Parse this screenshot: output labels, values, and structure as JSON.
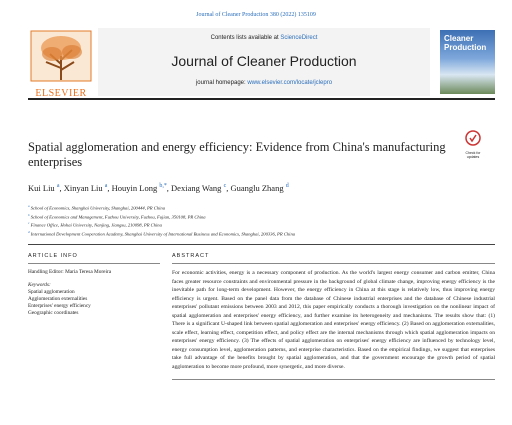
{
  "header": {
    "citation": "Journal of Cleaner Production 380 (2022) 135109",
    "contents_prefix": "Contents lists available at",
    "contents_link": "ScienceDirect",
    "journal_title": "Journal of Cleaner Production",
    "homepage_prefix": "journal homepage:",
    "homepage_link": "www.elsevier.com/locate/jclepro",
    "publisher": "ELSEVIER",
    "cover_title": "Cleaner Production",
    "badge": "Check for updates"
  },
  "article": {
    "title": "Spatial agglomeration and energy efficiency: Evidence from China's manufacturing enterprises",
    "authors": [
      {
        "name": "Kui Liu",
        "sup": "a"
      },
      {
        "name": "Xinyan Liu",
        "sup": "a"
      },
      {
        "name": "Houyin Long",
        "sup": "b,*"
      },
      {
        "name": "Dexiang Wang",
        "sup": "c"
      },
      {
        "name": "Guanglu Zhang",
        "sup": "d"
      }
    ],
    "affiliations": [
      {
        "sup": "a",
        "text": "School of Economics, Shanghai University, Shanghai, 200444, PR China"
      },
      {
        "sup": "b",
        "text": "School of Economics and Management, Fuzhou University, Fuzhou, Fujian, 350108, PR China"
      },
      {
        "sup": "c",
        "text": "Finance Office, Hohai University, Nanjing, Jiangsu, 210098, PR China"
      },
      {
        "sup": "d",
        "text": "International Development Cooperation Academy, Shanghai University of International Business and Economics, Shanghai, 200336, PR China"
      }
    ]
  },
  "article_info": {
    "heading": "ARTICLE INFO",
    "editor": "Handling Editor: Maria Teresa Moreira",
    "keywords_label": "Keywords:",
    "keywords": [
      "Spatial agglomeration",
      "Agglomeration externalities",
      "Enterprises' energy efficiency",
      "Geographic coordinates"
    ]
  },
  "abstract": {
    "heading": "ABSTRACT",
    "text": "For economic activities, energy is a necessary component of production. As the world's largest energy consumer and carbon emitter, China faces greater resource constraints and environmental pressure in the background of global climate change, improving energy efficiency is the inevitable path for long-term development. However, the energy efficiency in China at this stage is relatively low, thus improving energy efficiency is urgent. Based on the panel data from the database of Chinese industrial enterprises and the database of Chinese industrial enterprises' pollutant emissions between 2003 and 2012, this paper empirically conducts a thorough investigation on the nonlinear impact of spatial agglomeration and enterprises' energy efficiency, and further examine its heterogeneity and mechanisms. The results show that: (1) There is a significant U-shaped link between spatial agglomeration and enterprises' energy efficiency. (2) Based on agglomeration externalities, scale effect, learning effect, competition effect, and policy effect are the internal mechanisms through which spatial agglomeration impacts on enterprises' energy efficiency. (3) The effects of spatial agglomeration on enterprises' energy efficiency are influenced by technology level, energy consumption level, agglomeration patterns, and enterprise characteristics. Based on the empirical findings, we suggest that enterprises take full advantage of the benefits brought by spatial agglomeration, and that the government encourage the growth period of spatial agglomeration to become more profound, more synergetic, and more diverse."
  }
}
